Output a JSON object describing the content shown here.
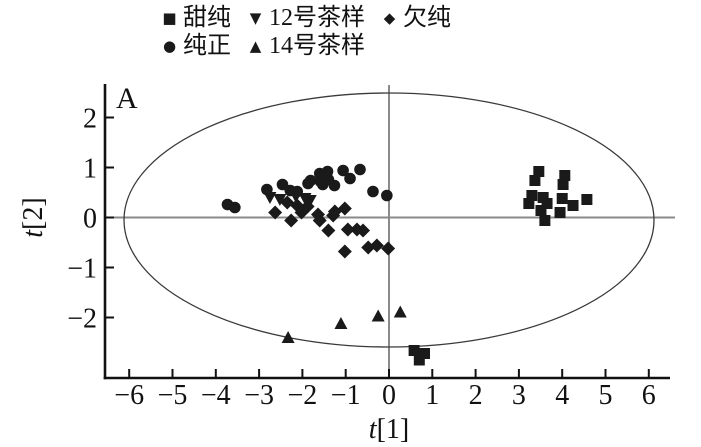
{
  "legend": {
    "rows": [
      [
        {
          "glyph": "■",
          "label": "甜纯",
          "icon": "square-marker-icon"
        },
        {
          "glyph": "▼",
          "label": "12号茶样",
          "icon": "triangle-down-marker-icon"
        },
        {
          "glyph": "◆",
          "label": "欠纯",
          "icon": "diamond-marker-icon"
        }
      ],
      [
        {
          "glyph": "●",
          "label": "纯正",
          "icon": "circle-marker-icon"
        },
        {
          "glyph": "▲",
          "label": "14号茶样",
          "icon": "triangle-up-marker-icon"
        }
      ]
    ]
  },
  "chart_data": {
    "type": "scatter",
    "panel_label": "A",
    "xlabel": {
      "italic": "t",
      "rest": "[1]"
    },
    "ylabel": {
      "italic": "t",
      "rest": "[2]"
    },
    "xlim": [
      -6.6,
      6.5
    ],
    "ylim": [
      -3.2,
      2.65
    ],
    "x_ticks": [
      -6,
      -5,
      -4,
      -3,
      -2,
      -1,
      0,
      1,
      2,
      3,
      4,
      5,
      6
    ],
    "y_ticks": [
      -2,
      -1,
      0,
      1,
      2
    ],
    "grid": false,
    "crosshair": true,
    "legend_position": "top",
    "hotelling_ellipse": {
      "cx": 0,
      "cy": -0.05,
      "rx": 6.12,
      "ry": 2.54
    },
    "colors": {
      "marker": "#1a1a1a",
      "crosshair": "#8a8a8a",
      "ellipse": "#3a3a3a",
      "axis": "#111111"
    },
    "series": [
      {
        "name": "甜纯",
        "marker": "square",
        "points": [
          [
            3.46,
            0.92
          ],
          [
            3.37,
            0.74
          ],
          [
            4.06,
            0.84
          ],
          [
            4.02,
            0.66
          ],
          [
            3.3,
            0.44
          ],
          [
            3.56,
            0.4
          ],
          [
            3.23,
            0.28
          ],
          [
            3.65,
            0.28
          ],
          [
            4.0,
            0.38
          ],
          [
            4.57,
            0.36
          ],
          [
            4.25,
            0.24
          ],
          [
            3.51,
            0.14
          ],
          [
            3.95,
            0.1
          ],
          [
            3.6,
            -0.06
          ],
          [
            0.58,
            -2.66
          ],
          [
            0.82,
            -2.72
          ],
          [
            0.7,
            -2.85
          ]
        ]
      },
      {
        "name": "纯正",
        "marker": "circle",
        "points": [
          [
            -3.73,
            0.26
          ],
          [
            -3.56,
            0.2
          ],
          [
            -2.82,
            0.56
          ],
          [
            -2.46,
            0.66
          ],
          [
            -2.28,
            0.54
          ],
          [
            -2.12,
            0.52
          ],
          [
            -1.87,
            0.68
          ],
          [
            -1.81,
            0.74
          ],
          [
            -1.6,
            0.88
          ],
          [
            -1.58,
            0.72
          ],
          [
            -1.42,
            0.92
          ],
          [
            -1.4,
            0.76
          ],
          [
            -1.53,
            0.66
          ],
          [
            -1.26,
            0.64
          ],
          [
            -1.06,
            0.94
          ],
          [
            -0.9,
            0.78
          ],
          [
            -0.67,
            0.96
          ],
          [
            -0.37,
            0.52
          ],
          [
            -0.05,
            0.44
          ]
        ]
      },
      {
        "name": "12号茶样",
        "marker": "triangle-down",
        "points": [
          [
            -2.75,
            0.4
          ],
          [
            -2.52,
            0.36
          ],
          [
            -2.15,
            0.42
          ],
          [
            -1.94,
            0.38
          ],
          [
            -1.82,
            0.34
          ]
        ]
      },
      {
        "name": "14号茶样",
        "marker": "triangle-up",
        "points": [
          [
            -2.33,
            -2.4
          ],
          [
            -1.11,
            -2.12
          ],
          [
            -0.25,
            -1.97
          ],
          [
            0.26,
            -1.89
          ]
        ]
      },
      {
        "name": "欠纯",
        "marker": "diamond",
        "points": [
          [
            -2.63,
            0.1
          ],
          [
            -2.35,
            0.3
          ],
          [
            -2.12,
            0.24
          ],
          [
            -1.88,
            0.22
          ],
          [
            -2.26,
            -0.06
          ],
          [
            -2.02,
            0.1
          ],
          [
            -1.64,
            0.06
          ],
          [
            -1.6,
            -0.06
          ],
          [
            -1.29,
            0.04
          ],
          [
            -1.25,
            0.12
          ],
          [
            -1.02,
            0.18
          ],
          [
            -1.4,
            -0.26
          ],
          [
            -0.95,
            -0.24
          ],
          [
            -0.74,
            -0.24
          ],
          [
            -0.6,
            -0.26
          ],
          [
            -1.02,
            -0.68
          ],
          [
            -0.48,
            -0.6
          ],
          [
            -0.28,
            -0.56
          ],
          [
            -0.02,
            -0.62
          ]
        ]
      }
    ]
  }
}
